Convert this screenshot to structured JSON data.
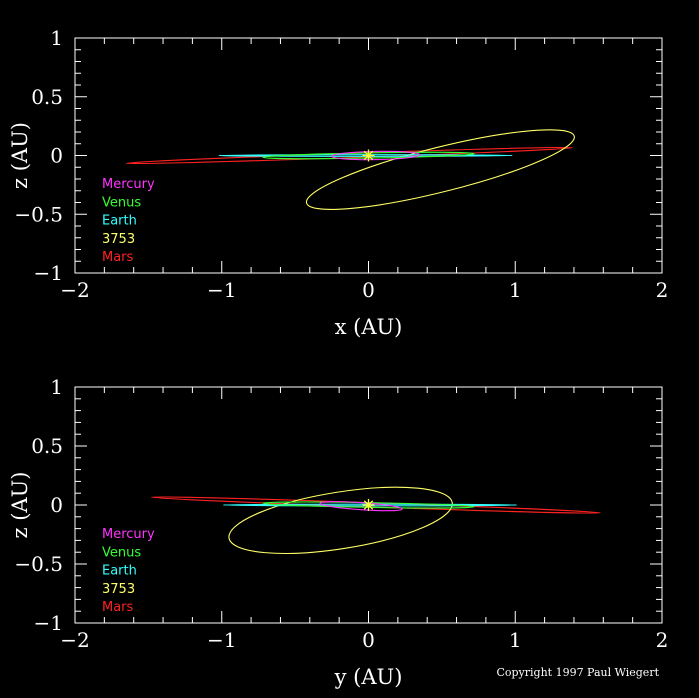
{
  "copyright": "Copyright 1997 Paul Wiegert",
  "legend": [
    {
      "name": "Mercury",
      "color": "#ff33ff"
    },
    {
      "name": "Venus",
      "color": "#33ff33"
    },
    {
      "name": "Earth",
      "color": "#33ffff"
    },
    {
      "name": "3753",
      "color": "#ffff66"
    },
    {
      "name": "Mars",
      "color": "#ff2222"
    }
  ],
  "sun_marker_color": "#ffff33",
  "chart_data": [
    {
      "type": "line",
      "panel": "top",
      "xlabel": "x (AU)",
      "ylabel": "z (AU)",
      "xlim": [
        -2,
        2
      ],
      "ylim": [
        -1,
        1
      ],
      "xticks": [
        -2,
        -1,
        0,
        1,
        2
      ],
      "yticks": [
        -1,
        -0.5,
        0,
        0.5,
        1
      ],
      "xtick_labels": [
        "−2",
        "−1",
        "0",
        "1",
        "2"
      ],
      "ytick_labels": [
        "−1",
        "−0.5",
        "0",
        "0.5",
        "1"
      ],
      "grid": false,
      "legend_position": "left",
      "orbits": [
        {
          "name": "Mercury",
          "center": [
            0.05,
            0.0
          ],
          "semi_axes": [
            0.3,
            0.035
          ],
          "tilt_deg": -1
        },
        {
          "name": "Venus",
          "center": [
            0.0,
            0.0
          ],
          "semi_axes": [
            0.72,
            0.022
          ],
          "tilt_deg": -1
        },
        {
          "name": "Earth",
          "center": [
            -0.02,
            0.0
          ],
          "semi_axes": [
            1.0,
            0.005
          ],
          "tilt_deg": 0
        },
        {
          "name": "3753",
          "center": [
            0.49,
            -0.12
          ],
          "semi_axes": [
            0.94,
            0.19
          ],
          "tilt_deg": -14
        },
        {
          "name": "Mars",
          "center": [
            -0.13,
            0.0
          ],
          "semi_axes": [
            1.52,
            0.018
          ],
          "tilt_deg": -2
        }
      ],
      "sun": [
        0,
        0
      ]
    },
    {
      "type": "line",
      "panel": "bottom",
      "xlabel": "y (AU)",
      "ylabel": "z (AU)",
      "xlim": [
        -2,
        2
      ],
      "ylim": [
        -1,
        1
      ],
      "xticks": [
        -2,
        -1,
        0,
        1,
        2
      ],
      "yticks": [
        -1,
        -0.5,
        0,
        0.5,
        1
      ],
      "xtick_labels": [
        "−2",
        "−1",
        "0",
        "1",
        "2"
      ],
      "ytick_labels": [
        "−1",
        "−0.5",
        "0",
        "0.5",
        "1"
      ],
      "grid": false,
      "legend_position": "left",
      "orbits": [
        {
          "name": "Mercury",
          "center": [
            -0.05,
            -0.01
          ],
          "semi_axes": [
            0.28,
            0.03
          ],
          "tilt_deg": 4
        },
        {
          "name": "Venus",
          "center": [
            0.0,
            0.0
          ],
          "semi_axes": [
            0.72,
            0.02
          ],
          "tilt_deg": 1
        },
        {
          "name": "Earth",
          "center": [
            0.01,
            0.0
          ],
          "semi_axes": [
            1.0,
            0.006
          ],
          "tilt_deg": 0
        },
        {
          "name": "3753",
          "center": [
            -0.19,
            -0.13
          ],
          "semi_axes": [
            0.77,
            0.24
          ],
          "tilt_deg": -9
        },
        {
          "name": "Mars",
          "center": [
            0.05,
            0.0
          ],
          "semi_axes": [
            1.53,
            0.018
          ],
          "tilt_deg": 2
        }
      ],
      "sun": [
        0,
        0
      ]
    }
  ]
}
